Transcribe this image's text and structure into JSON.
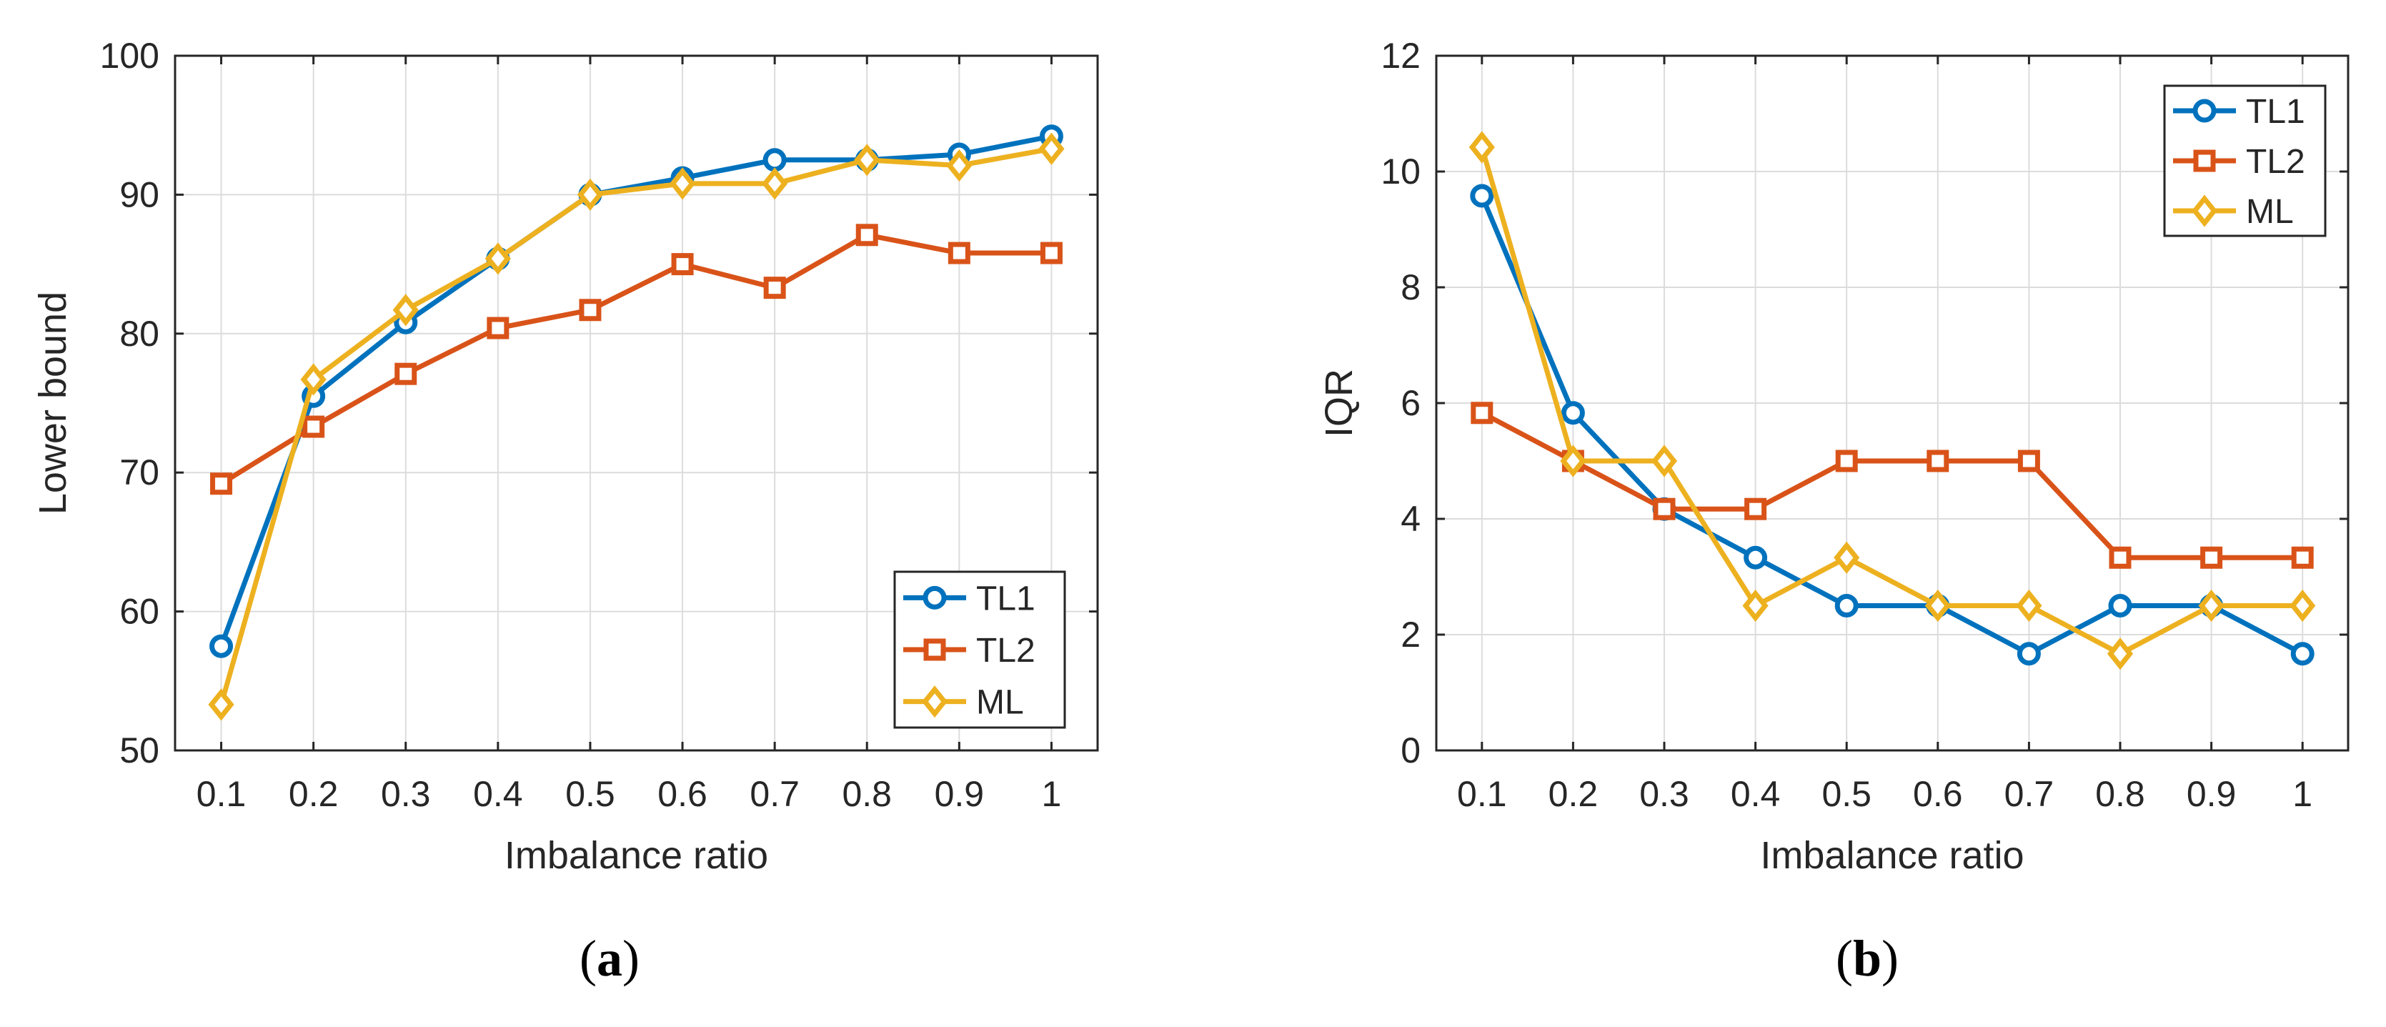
{
  "figure": {
    "colors": {
      "TL1": "#0072BD",
      "TL2": "#D95319",
      "ML": "#EDB120"
    }
  },
  "chart_data": [
    {
      "type": "line",
      "panel_caption": "(a)",
      "caption_letter": "a",
      "xlabel": "Imbalance ratio",
      "ylabel": "Lower bound",
      "x": [
        0.1,
        0.2,
        0.3,
        0.4,
        0.5,
        0.6,
        0.7,
        0.8,
        0.9,
        1
      ],
      "xtick_labels": [
        "0.1",
        "0.2",
        "0.3",
        "0.4",
        "0.5",
        "0.6",
        "0.7",
        "0.8",
        "0.9",
        "1"
      ],
      "xlim": [
        0.05,
        1.05
      ],
      "ylim": [
        50,
        100
      ],
      "yticks": [
        50,
        60,
        70,
        80,
        90,
        100
      ],
      "ytick_labels": [
        "50",
        "60",
        "70",
        "80",
        "90",
        "100"
      ],
      "grid": true,
      "legend_position": "bottom-right",
      "series": [
        {
          "name": "TL1",
          "marker": "circle",
          "values": [
            57.5,
            75.5,
            80.8,
            85.4,
            90.0,
            91.2,
            92.5,
            92.5,
            92.9,
            94.2
          ]
        },
        {
          "name": "TL2",
          "marker": "square",
          "values": [
            69.2,
            73.3,
            77.1,
            80.4,
            81.7,
            85.0,
            83.3,
            87.1,
            85.8,
            85.8
          ]
        },
        {
          "name": "ML",
          "marker": "diamond",
          "values": [
            53.3,
            76.7,
            81.7,
            85.4,
            90.0,
            90.8,
            90.8,
            92.5,
            92.1,
            93.3
          ]
        }
      ]
    },
    {
      "type": "line",
      "panel_caption": "(b)",
      "caption_letter": "b",
      "xlabel": "Imbalance ratio",
      "ylabel": "IQR",
      "x": [
        0.1,
        0.2,
        0.3,
        0.4,
        0.5,
        0.6,
        0.7,
        0.8,
        0.9,
        1
      ],
      "xtick_labels": [
        "0.1",
        "0.2",
        "0.3",
        "0.4",
        "0.5",
        "0.6",
        "0.7",
        "0.8",
        "0.9",
        "1"
      ],
      "xlim": [
        0.05,
        1.05
      ],
      "ylim": [
        0,
        12
      ],
      "yticks": [
        0,
        2,
        4,
        6,
        8,
        10,
        12
      ],
      "ytick_labels": [
        "0",
        "2",
        "4",
        "6",
        "8",
        "10",
        "12"
      ],
      "grid": true,
      "legend_position": "top-right",
      "series": [
        {
          "name": "TL1",
          "marker": "circle",
          "values": [
            9.58,
            5.83,
            4.17,
            3.33,
            2.5,
            2.5,
            1.67,
            2.5,
            2.5,
            1.67
          ]
        },
        {
          "name": "TL2",
          "marker": "square",
          "values": [
            5.83,
            5.0,
            4.17,
            4.17,
            5.0,
            5.0,
            5.0,
            3.33,
            3.33,
            3.33
          ]
        },
        {
          "name": "ML",
          "marker": "diamond",
          "values": [
            10.42,
            5.0,
            5.0,
            2.5,
            3.33,
            2.5,
            2.5,
            1.67,
            2.5,
            2.5
          ]
        }
      ]
    }
  ]
}
